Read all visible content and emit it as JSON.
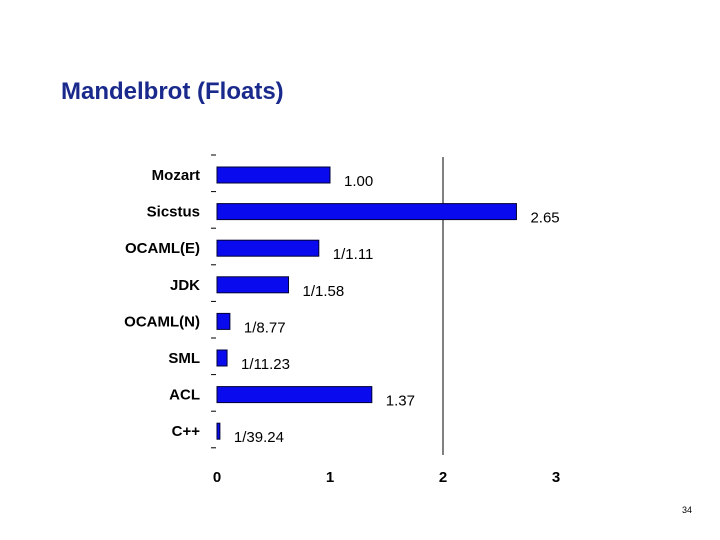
{
  "slide": {
    "title": "Mandelbrot (Floats)",
    "page_number": "34"
  },
  "chart_data": {
    "type": "bar",
    "orientation": "horizontal",
    "title": "Mandelbrot (Floats)",
    "xlabel": "",
    "ylabel": "",
    "categories": [
      "Mozart",
      "Sicstus",
      "OCAML(E)",
      "JDK",
      "OCAML(N)",
      "SML",
      "ACL",
      "C++"
    ],
    "values": [
      1.0,
      2.65,
      0.9009,
      0.6329,
      0.114,
      0.089,
      1.37,
      0.0255
    ],
    "data_labels": [
      "1.00",
      "2.65",
      "1/1.11",
      "1/1.58",
      "1/8.77",
      "1/11.23",
      "1.37",
      "1/39.24"
    ],
    "xlim": [
      0,
      3
    ],
    "x_ticks": [
      "0",
      "1",
      "2",
      "3"
    ],
    "reference_line": 2,
    "bar_color": "#0a0aee",
    "bar_outline": "#000033",
    "title_color": "#1a2a8c",
    "grid": false,
    "legend": "none"
  }
}
